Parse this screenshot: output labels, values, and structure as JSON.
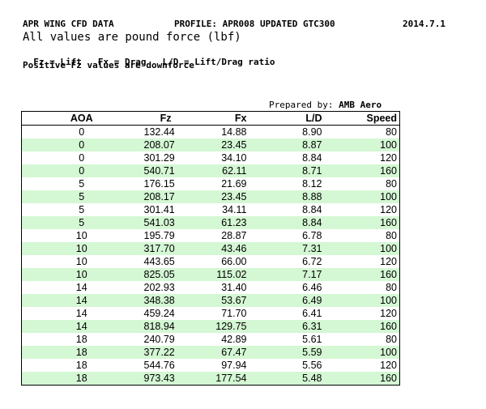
{
  "header": {
    "title": "APR WING CFD DATA",
    "profile": "PROFILE: APR008 UPDATED GTC300",
    "date": "2014.7.1",
    "units": "All values are pound force (lbf)",
    "legend": [
      "Fz = Lift",
      "Fx = Drag",
      "L/D = Lift/Drag ratio"
    ],
    "note": "Positive Fz values are downforce"
  },
  "prepared": {
    "label": "Prepared by:",
    "name": "AMB Aero"
  },
  "table": {
    "columns": [
      "AOA",
      "Fz",
      "Fx",
      "L/D",
      "Speed"
    ],
    "rows": [
      [
        "0",
        "132.44",
        "14.88",
        "8.90",
        "80"
      ],
      [
        "0",
        "208.07",
        "23.45",
        "8.87",
        "100"
      ],
      [
        "0",
        "301.29",
        "34.10",
        "8.84",
        "120"
      ],
      [
        "0",
        "540.71",
        "62.11",
        "8.71",
        "160"
      ],
      [
        "5",
        "176.15",
        "21.69",
        "8.12",
        "80"
      ],
      [
        "5",
        "208.17",
        "23.45",
        "8.88",
        "100"
      ],
      [
        "5",
        "301.41",
        "34.11",
        "8.84",
        "120"
      ],
      [
        "5",
        "541.03",
        "61.23",
        "8.84",
        "160"
      ],
      [
        "10",
        "195.79",
        "28.87",
        "6.78",
        "80"
      ],
      [
        "10",
        "317.70",
        "43.46",
        "7.31",
        "100"
      ],
      [
        "10",
        "443.65",
        "66.00",
        "6.72",
        "120"
      ],
      [
        "10",
        "825.05",
        "115.02",
        "7.17",
        "160"
      ],
      [
        "14",
        "202.93",
        "31.40",
        "6.46",
        "80"
      ],
      [
        "14",
        "348.38",
        "53.67",
        "6.49",
        "100"
      ],
      [
        "14",
        "459.24",
        "71.70",
        "6.41",
        "120"
      ],
      [
        "14",
        "818.94",
        "129.75",
        "6.31",
        "160"
      ],
      [
        "18",
        "240.79",
        "42.89",
        "5.61",
        "80"
      ],
      [
        "18",
        "377.22",
        "67.47",
        "5.59",
        "100"
      ],
      [
        "18",
        "544.76",
        "97.94",
        "5.56",
        "120"
      ],
      [
        "18",
        "973.43",
        "177.54",
        "5.48",
        "160"
      ]
    ]
  }
}
